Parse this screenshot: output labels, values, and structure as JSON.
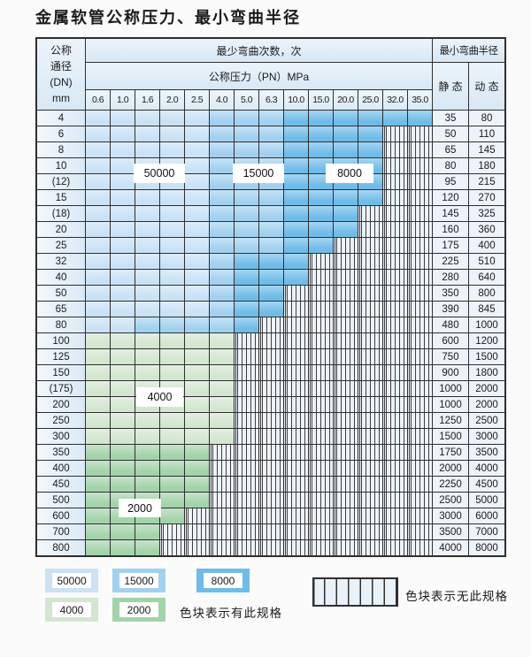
{
  "title": "金属软管公称压力、最小弯曲半径",
  "colors": {
    "c50000": "#c9e2f6",
    "c15000": "#a2d1f0",
    "c8000": "#6fbce9",
    "c4000": "#d3e6d0",
    "c2000": "#a3d3a9",
    "hatch_bg": "#edf3fa",
    "hatch_line": "#3f3f3f",
    "grid_line": "#2f2f2f"
  },
  "table": {
    "header": {
      "dn_lines": [
        "公称",
        "通径",
        "(DN)",
        "mm"
      ],
      "bend_cycles_label": "最少弯曲次数，次",
      "pressure_label": "公称压力（PN）MPa",
      "pressure_columns": [
        "0.6",
        "1.0",
        "1.6",
        "2.0",
        "2.5",
        "4.0",
        "5.0",
        "6.3",
        "10.0",
        "15.0",
        "20.0",
        "25.0",
        "32.0",
        "35.0"
      ],
      "min_bend_radius_label": "最小弯曲半径",
      "static_label": "静 态",
      "dynamic_label": "动 态"
    },
    "band_legend": {
      "L": "50000",
      "M": "15000",
      "D": "8000",
      "A": "4000",
      "B": "2000",
      "X": "no-spec-hatch"
    },
    "rows": [
      {
        "dn": "4",
        "codes": "LLLLLMMMDDDDDD",
        "static": "35",
        "dynamic": "80"
      },
      {
        "dn": "6",
        "codes": "LLLLLMMMDDDDXX",
        "static": "50",
        "dynamic": "110"
      },
      {
        "dn": "8",
        "codes": "LLLLLMMMDDDDXX",
        "static": "65",
        "dynamic": "145"
      },
      {
        "dn": "10",
        "codes": "LLLLLMMMDDDDXX",
        "static": "80",
        "dynamic": "180"
      },
      {
        "dn": "(12)",
        "codes": "LLLLLMMMDDDDXX",
        "static": "95",
        "dynamic": "215"
      },
      {
        "dn": "15",
        "codes": "LLLLLMMMDDDDXX",
        "static": "120",
        "dynamic": "270"
      },
      {
        "dn": "(18)",
        "codes": "LLLLLMMMDDDXXX",
        "static": "145",
        "dynamic": "325"
      },
      {
        "dn": "20",
        "codes": "LLLLLMMMDDDXXX",
        "static": "160",
        "dynamic": "360"
      },
      {
        "dn": "25",
        "codes": "LLLLLMMMDDXXXX",
        "static": "175",
        "dynamic": "400"
      },
      {
        "dn": "32",
        "codes": "LLLLLMDDDXXXXX",
        "static": "225",
        "dynamic": "510"
      },
      {
        "dn": "40",
        "codes": "LLLLLMDDDXXXXX",
        "static": "280",
        "dynamic": "640"
      },
      {
        "dn": "50",
        "codes": "LLLLLMDDXXXXXX",
        "static": "350",
        "dynamic": "800"
      },
      {
        "dn": "65",
        "codes": "LLLLLMDDXXXXXX",
        "static": "390",
        "dynamic": "845"
      },
      {
        "dn": "80",
        "codes": "LLMMMMDXXXXXXX",
        "static": "480",
        "dynamic": "1000"
      },
      {
        "dn": "100",
        "codes": "AAAAAAXXXXXXXX",
        "static": "600",
        "dynamic": "1200"
      },
      {
        "dn": "125",
        "codes": "AAAAAAXXXXXXXX",
        "static": "750",
        "dynamic": "1500"
      },
      {
        "dn": "150",
        "codes": "AAAAAAXXXXXXXX",
        "static": "900",
        "dynamic": "1800"
      },
      {
        "dn": "(175)",
        "codes": "AAAAAAXXXXXXXX",
        "static": "1000",
        "dynamic": "2000"
      },
      {
        "dn": "200",
        "codes": "AAAAAAXXXXXXXX",
        "static": "1000",
        "dynamic": "2000"
      },
      {
        "dn": "250",
        "codes": "AAAAAAXXXXXXXX",
        "static": "1250",
        "dynamic": "2500"
      },
      {
        "dn": "300",
        "codes": "AAAAAAXXXXXXXX",
        "static": "1500",
        "dynamic": "3000"
      },
      {
        "dn": "350",
        "codes": "BBBBBXXXXXXXXX",
        "static": "1750",
        "dynamic": "3500"
      },
      {
        "dn": "400",
        "codes": "BBBBBXXXXXXXXX",
        "static": "2000",
        "dynamic": "4000"
      },
      {
        "dn": "450",
        "codes": "BBBBBXXXXXXXXX",
        "static": "2250",
        "dynamic": "4500"
      },
      {
        "dn": "500",
        "codes": "BBBBBXXXXXXXXX",
        "static": "2500",
        "dynamic": "5000"
      },
      {
        "dn": "600",
        "codes": "BBBBXXXXXXXXXX",
        "static": "3000",
        "dynamic": "6000"
      },
      {
        "dn": "700",
        "codes": "BBBXXXXXXXXXXX",
        "static": "3500",
        "dynamic": "7000"
      },
      {
        "dn": "800",
        "codes": "BBBXXXXXXXXXXX",
        "static": "4000",
        "dynamic": "8000"
      }
    ]
  },
  "overlay_labels": {
    "l50000": "50000",
    "l15000": "15000",
    "l8000": "8000",
    "l4000": "4000",
    "l2000": "2000"
  },
  "legend": {
    "items": [
      {
        "value": "50000",
        "band": "L"
      },
      {
        "value": "15000",
        "band": "M"
      },
      {
        "value": "8000",
        "band": "D"
      },
      {
        "value": "4000",
        "band": "A"
      },
      {
        "value": "2000",
        "band": "B"
      }
    ],
    "has_spec_note": "色块表示有此规格",
    "no_spec_note": "色块表示无此规格"
  }
}
